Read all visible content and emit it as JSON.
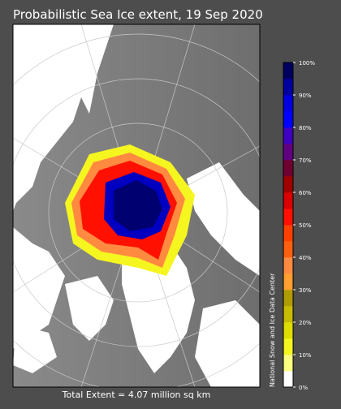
{
  "title": "Probabilistic Sea Ice extent, 19 Sep 2020",
  "footer": "Total Extent = 4.07 million sq km",
  "credit": "National Snow and Ice Data Center",
  "colorbar": {
    "lim": [
      0,
      100
    ],
    "ticks": [
      {
        "value": 0,
        "label": "0%"
      },
      {
        "value": 10,
        "label": "10%"
      },
      {
        "value": 20,
        "label": "20%"
      },
      {
        "value": 30,
        "label": "30%"
      },
      {
        "value": 40,
        "label": "40%"
      },
      {
        "value": 50,
        "label": "50%"
      },
      {
        "value": 60,
        "label": "60%"
      },
      {
        "value": 70,
        "label": "70%"
      },
      {
        "value": 80,
        "label": "80%"
      },
      {
        "value": 90,
        "label": "90%"
      },
      {
        "value": 100,
        "label": "100%"
      }
    ],
    "colors": [
      "#ffffff",
      "#ffff80",
      "#f5f520",
      "#dede00",
      "#c8bc00",
      "#b09c00",
      "#ffa030",
      "#ff8a40",
      "#ff6010",
      "#ff4000",
      "#ff1000",
      "#d80000",
      "#a00000",
      "#700030",
      "#600080",
      "#4000c0",
      "#0000ff",
      "#0000e0",
      "#0000a0",
      "#000060"
    ]
  }
}
